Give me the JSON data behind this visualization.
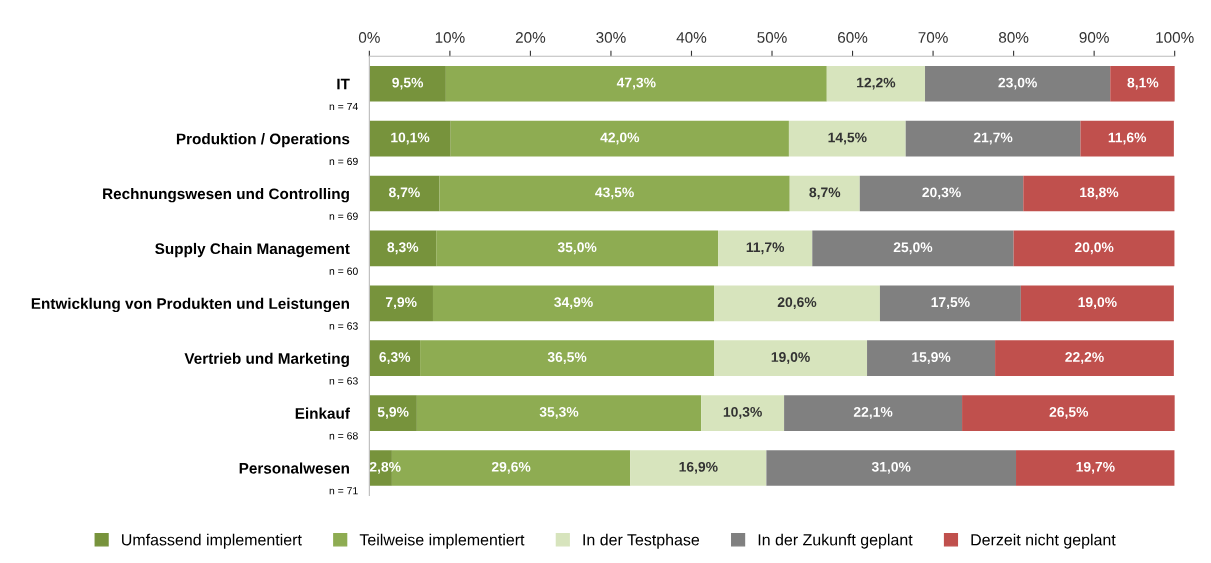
{
  "chart_data": {
    "type": "bar",
    "orientation": "horizontal",
    "stacked": true,
    "categories": [
      "IT",
      "Produktion / Operations",
      "Rechnungswesen und Controlling",
      "Supply Chain Management",
      "Entwicklung von Produkten und Leistungen",
      "Vertrieb und Marketing",
      "Einkauf",
      "Personalwesen"
    ],
    "annotations": [
      "n = 74",
      "n = 69",
      "n = 69",
      "n = 60",
      "n = 63",
      "n = 63",
      "n = 68",
      "n = 71"
    ],
    "series": [
      {
        "name": "Umfassend implementiert",
        "color": "#77933c",
        "values": [
          9.5,
          10.1,
          8.7,
          8.3,
          7.9,
          6.3,
          5.9,
          2.8
        ],
        "value_labels": [
          "9,5%",
          "10,1%",
          "8,7%",
          "8,3%",
          "7,9%",
          "6,3%",
          "5,9%",
          "2,8%"
        ]
      },
      {
        "name": "Teilweise implementiert",
        "color": "#8eac52",
        "values": [
          47.3,
          42.0,
          43.5,
          35.0,
          34.9,
          36.5,
          35.3,
          29.6
        ],
        "value_labels": [
          "47,3%",
          "42,0%",
          "43,5%",
          "35,0%",
          "34,9%",
          "36,5%",
          "35,3%",
          "29,6%"
        ]
      },
      {
        "name": "In der Testphase",
        "color": "#d7e4bd",
        "values": [
          12.2,
          14.5,
          8.7,
          11.7,
          20.6,
          19.0,
          10.3,
          16.9
        ],
        "value_labels": [
          "12,2%",
          "14,5%",
          "8,7%",
          "11,7%",
          "20,6%",
          "19,0%",
          "10,3%",
          "16,9%"
        ]
      },
      {
        "name": "In der Zukunft geplant",
        "color": "#808080",
        "values": [
          23.0,
          21.7,
          20.3,
          25.0,
          17.5,
          15.9,
          22.1,
          31.0
        ],
        "value_labels": [
          "23,0%",
          "21,7%",
          "20,3%",
          "25,0%",
          "17,5%",
          "15,9%",
          "22,1%",
          "31,0%"
        ]
      },
      {
        "name": "Derzeit nicht geplant",
        "color": "#c0504d",
        "values": [
          8.1,
          11.6,
          18.8,
          20.0,
          19.0,
          22.2,
          26.5,
          19.7
        ],
        "value_labels": [
          "8,1%",
          "11,6%",
          "18,8%",
          "20,0%",
          "19,0%",
          "22,2%",
          "26,5%",
          "19,7%"
        ]
      }
    ],
    "xlim": [
      0,
      100
    ],
    "xticks": [
      {
        "value": 0,
        "label": "0%"
      },
      {
        "value": 10,
        "label": "10%"
      },
      {
        "value": 20,
        "label": "20%"
      },
      {
        "value": 30,
        "label": "30%"
      },
      {
        "value": 40,
        "label": "40%"
      },
      {
        "value": 50,
        "label": "50%"
      },
      {
        "value": 60,
        "label": "60%"
      },
      {
        "value": 70,
        "label": "70%"
      },
      {
        "value": 80,
        "label": "80%"
      },
      {
        "value": 90,
        "label": "90%"
      },
      {
        "value": 100,
        "label": "100%"
      }
    ],
    "grid": false,
    "legend": "bottom"
  }
}
